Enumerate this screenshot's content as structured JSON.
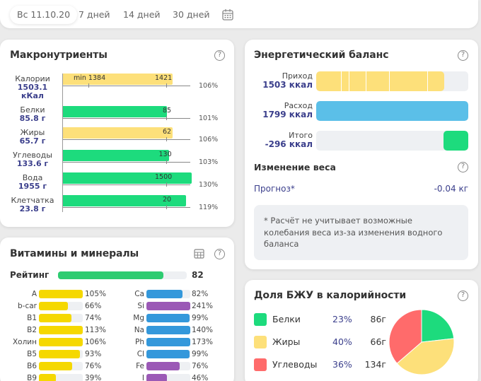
{
  "topbar": {
    "date": "Вс 11.10.20",
    "ranges": [
      "7 дней",
      "14 дней",
      "30 дней"
    ],
    "calendar_icon": "calendar-icon"
  },
  "macro": {
    "title": "Макронутриенты",
    "help_icon": "help-icon",
    "rows": [
      {
        "name": "Калории",
        "value": "1503.1",
        "unit": "кКал",
        "bar_label": "1421",
        "min_label": "min 1384",
        "percent": "106%",
        "fill": 1.06,
        "color": "#fde07a"
      },
      {
        "name": "Белки",
        "value": "85.8 г",
        "bar_label": "85",
        "percent": "101%",
        "fill": 1.01,
        "color": "#1ddb7d"
      },
      {
        "name": "Жиры",
        "value": "65.7 г",
        "bar_label": "62",
        "percent": "106%",
        "fill": 1.06,
        "color": "#fde07a"
      },
      {
        "name": "Углеводы",
        "value": "133.6 г",
        "bar_label": "130",
        "percent": "103%",
        "fill": 1.03,
        "color": "#1ddb7d"
      },
      {
        "name": "Вода",
        "value": "1955 г",
        "bar_label": "1500",
        "percent": "130%",
        "fill": 1.3,
        "color": "#1ddb7d"
      },
      {
        "name": "Клетчатка",
        "value": "23.8 г",
        "bar_label": "20",
        "percent": "119%",
        "fill": 1.19,
        "color": "#1ddb7d"
      }
    ]
  },
  "vitamins": {
    "title": "Витамины и минералы",
    "table_icon": "table-icon",
    "help_icon": "help-icon",
    "rating_label": "Рейтинг",
    "rating": 82,
    "rating_text": "82",
    "left": [
      {
        "name": "A",
        "percent": "105%",
        "value": 105,
        "color": "#f5d800"
      },
      {
        "name": "b-car",
        "percent": "66%",
        "value": 66,
        "color": "#f5d800"
      },
      {
        "name": "B1",
        "percent": "74%",
        "value": 74,
        "color": "#f5d800"
      },
      {
        "name": "B2",
        "percent": "113%",
        "value": 113,
        "color": "#f5d800"
      },
      {
        "name": "Холин",
        "percent": "106%",
        "value": 106,
        "color": "#f5d800"
      },
      {
        "name": "B5",
        "percent": "93%",
        "value": 93,
        "color": "#f5d800"
      },
      {
        "name": "B6",
        "percent": "76%",
        "value": 76,
        "color": "#f5d800"
      },
      {
        "name": "B9",
        "percent": "39%",
        "value": 39,
        "color": "#f5d800"
      }
    ],
    "right": [
      {
        "name": "Ca",
        "percent": "82%",
        "value": 82,
        "color": "#3498db"
      },
      {
        "name": "Si",
        "percent": "241%",
        "value": 241,
        "color": "#9b59b6"
      },
      {
        "name": "Mg",
        "percent": "99%",
        "value": 99,
        "color": "#3498db"
      },
      {
        "name": "Na",
        "percent": "140%",
        "value": 140,
        "color": "#3498db"
      },
      {
        "name": "Ph",
        "percent": "173%",
        "value": 173,
        "color": "#3498db"
      },
      {
        "name": "Cl",
        "percent": "99%",
        "value": 99,
        "color": "#3498db"
      },
      {
        "name": "Fe",
        "percent": "76%",
        "value": 76,
        "color": "#9b59b6"
      },
      {
        "name": "I",
        "percent": "46%",
        "value": 46,
        "color": "#9b59b6"
      }
    ]
  },
  "energy": {
    "title": "Энергетический баланс",
    "help_icon": "help-icon",
    "rows": [
      {
        "name": "Приход",
        "value": "1503 ккал",
        "fill": 0.84,
        "color": "#fde07a"
      },
      {
        "name": "Расход",
        "value": "1799 ккал",
        "fill": 1.0,
        "color": "#5bbfe8"
      },
      {
        "name": "Итого",
        "value": "-296 ккал",
        "fill": 0.165,
        "color": "#1ddb7d"
      }
    ],
    "weight_title": "Изменение веса",
    "forecast_label": "Прогноз*",
    "forecast_value": "-0.04 кг",
    "note": "* Расчёт не учитывает возможные колебания веса из-за изменения водного баланса"
  },
  "bju": {
    "title": "Доля БЖУ в калорийности",
    "help_icon": "help-icon",
    "items": [
      {
        "name": "Белки",
        "percent": "23%",
        "grams": "86г",
        "color": "#1ddb7d"
      },
      {
        "name": "Жиры",
        "percent": "40%",
        "grams": "66г",
        "color": "#fde07a"
      },
      {
        "name": "Углеводы",
        "percent": "36%",
        "grams": "134г",
        "color": "#ff6b6b"
      }
    ]
  },
  "chart_data": {
    "type": "pie",
    "title": "Доля БЖУ в калорийности",
    "categories": [
      "Белки",
      "Жиры",
      "Углеводы"
    ],
    "values": [
      23,
      40,
      36
    ],
    "colors": [
      "#1ddb7d",
      "#fde07a",
      "#ff6b6b"
    ]
  }
}
